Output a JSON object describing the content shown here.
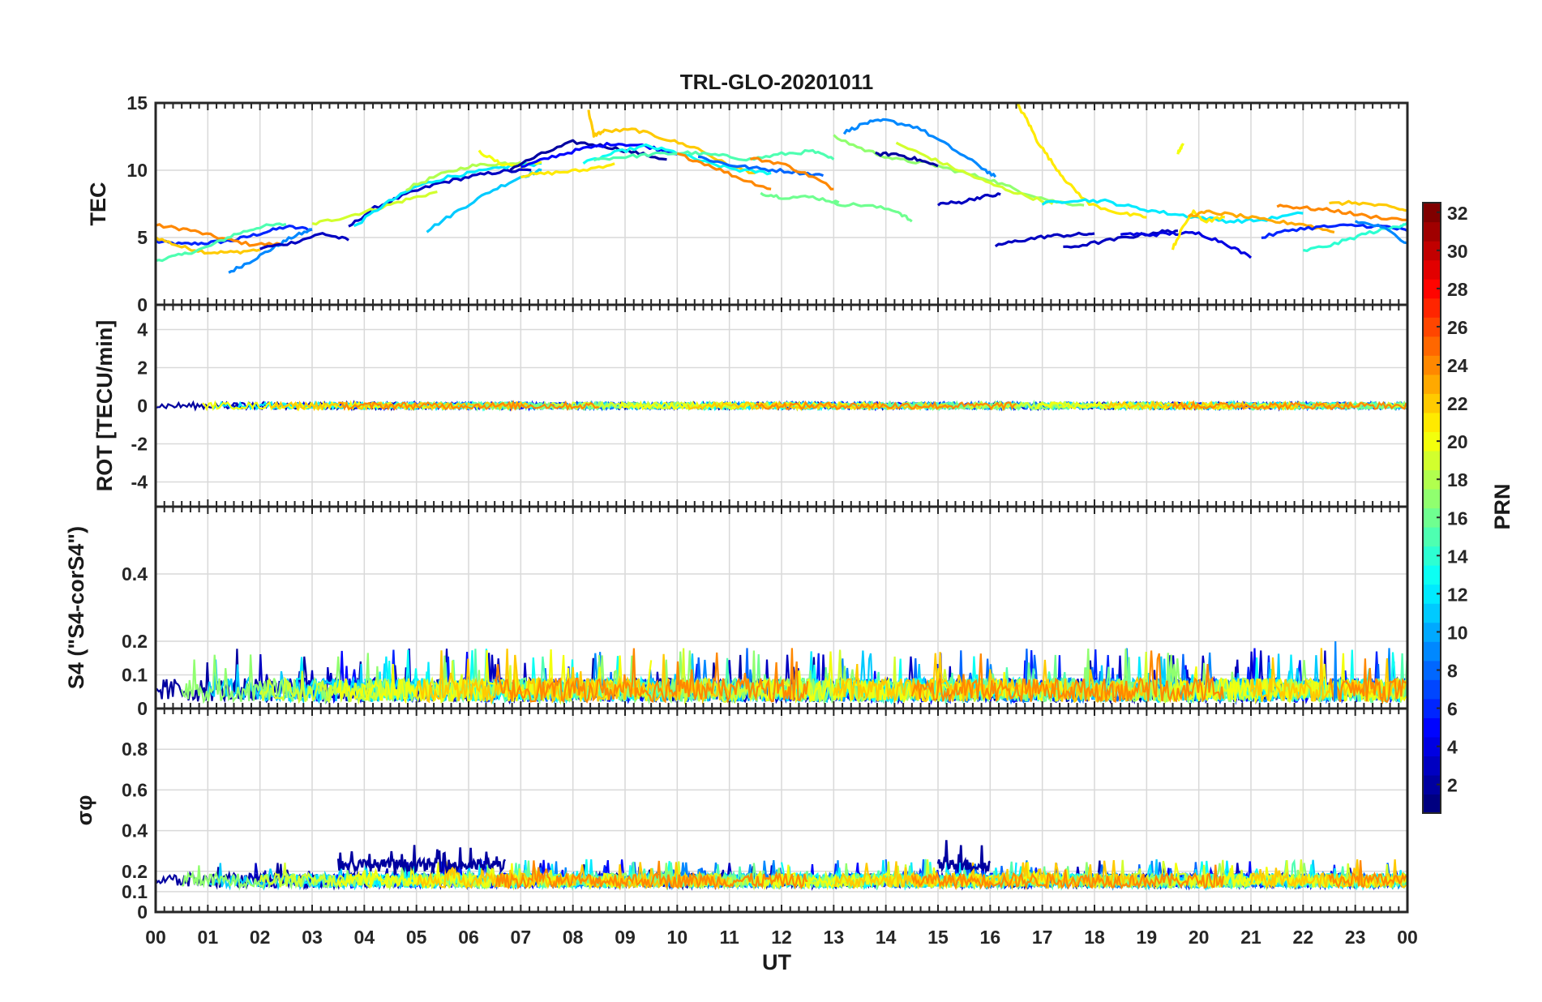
{
  "chart_data": {
    "type": "line",
    "title": "TRL-GLO-20201011",
    "xlabel": "UT",
    "x_tick_labels": [
      "00",
      "01",
      "02",
      "03",
      "04",
      "05",
      "06",
      "07",
      "08",
      "09",
      "10",
      "11",
      "12",
      "13",
      "14",
      "15",
      "16",
      "17",
      "18",
      "19",
      "20",
      "21",
      "22",
      "23",
      "00"
    ],
    "xlim_hours": [
      0,
      24
    ],
    "grid": true,
    "panels": [
      {
        "id": "tec",
        "ylabel": "TEC",
        "ylim": [
          0,
          15
        ],
        "yticks": [
          0,
          5,
          10,
          15
        ],
        "ytick_labels": [
          "0",
          "5",
          "10",
          "15"
        ],
        "series": [
          {
            "prn": 6,
            "x": [
              0.0,
              0.5,
              1.0,
              1.5,
              2.0,
              2.5,
              3.0
            ],
            "y": [
              4.7,
              4.5,
              4.6,
              4.8,
              5.3,
              5.8,
              5.6
            ]
          },
          {
            "prn": 22,
            "x": [
              0.0,
              0.5,
              1.0,
              1.5,
              2.0
            ],
            "y": [
              5.0,
              4.3,
              3.9,
              3.9,
              4.1
            ]
          },
          {
            "prn": 24,
            "x": [
              0.0,
              0.6,
              1.2,
              1.8,
              2.4
            ],
            "y": [
              5.9,
              5.6,
              5.0,
              4.5,
              4.5
            ]
          },
          {
            "prn": 15,
            "x": [
              0.0,
              0.5,
              1.0,
              1.5,
              2.0,
              2.5
            ],
            "y": [
              3.3,
              3.7,
              4.3,
              5.2,
              5.8,
              6.0
            ]
          },
          {
            "prn": 9,
            "x": [
              1.4,
              1.8,
              2.2,
              2.6,
              3.0
            ],
            "y": [
              2.4,
              3.2,
              4.1,
              5.0,
              5.6
            ]
          },
          {
            "prn": 3,
            "x": [
              2.0,
              2.6,
              3.2,
              3.7
            ],
            "y": [
              4.2,
              4.6,
              5.3,
              4.8
            ]
          },
          {
            "prn": 3,
            "x": [
              3.7,
              4.2,
              4.8,
              5.4,
              6.0,
              6.6,
              7.2
            ],
            "y": [
              5.8,
              7.2,
              8.2,
              9.0,
              9.5,
              9.9,
              10.0
            ]
          },
          {
            "prn": 19,
            "x": [
              3.0,
              3.6,
              4.2,
              4.8,
              5.4
            ],
            "y": [
              6.0,
              6.5,
              7.1,
              7.8,
              8.4
            ]
          },
          {
            "prn": 12,
            "x": [
              3.8,
              4.4,
              5.0,
              5.6,
              6.2,
              6.8,
              7.4
            ],
            "y": [
              5.8,
              7.5,
              8.8,
              9.5,
              9.9,
              10.3,
              10.5
            ]
          },
          {
            "prn": 18,
            "x": [
              4.8,
              5.4,
              6.0,
              6.6,
              7.0
            ],
            "y": [
              8.6,
              9.6,
              10.3,
              10.5,
              10.6
            ]
          },
          {
            "prn": 11,
            "x": [
              5.2,
              5.8,
              6.4,
              7.0,
              7.4
            ],
            "y": [
              5.5,
              7.0,
              8.4,
              9.5,
              10.0
            ]
          },
          {
            "prn": 20,
            "x": [
              6.2,
              6.6,
              7.0,
              7.4
            ],
            "y": [
              11.4,
              10.5,
              10.3,
              10.6
            ]
          },
          {
            "prn": 2,
            "x": [
              6.8,
              7.4,
              8.0,
              8.6,
              9.2,
              9.8
            ],
            "y": [
              10.1,
              11.2,
              12.1,
              11.8,
              11.3,
              10.8
            ]
          },
          {
            "prn": 5,
            "x": [
              7.0,
              7.6,
              8.2,
              8.8,
              9.4,
              10.0
            ],
            "y": [
              10.2,
              11.0,
              11.6,
              12.0,
              11.8,
              11.2
            ]
          },
          {
            "prn": 21,
            "x": [
              7.0,
              7.6,
              8.2,
              8.8
            ],
            "y": [
              9.6,
              9.8,
              10.0,
              10.5
            ]
          },
          {
            "prn": 22,
            "x": [
              8.3,
              8.4,
              8.6,
              9.2,
              9.8,
              10.4,
              11.0,
              11.5
            ],
            "y": [
              14.4,
              12.6,
              12.9,
              13.0,
              12.3,
              11.6,
              10.3,
              9.8
            ]
          },
          {
            "prn": 13,
            "x": [
              8.2,
              8.8,
              9.4,
              10.0,
              10.6,
              11.2,
              11.8
            ],
            "y": [
              10.5,
              11.3,
              11.8,
              11.3,
              10.5,
              10.0,
              9.8
            ]
          },
          {
            "prn": 15,
            "x": [
              8.4,
              9.0,
              9.6,
              10.2,
              10.8,
              11.4,
              12.0,
              12.6,
              13.0
            ],
            "y": [
              10.8,
              11.0,
              11.2,
              11.3,
              11.1,
              10.8,
              11.2,
              11.4,
              10.8
            ]
          },
          {
            "prn": 24,
            "x": [
              10.0,
              10.6,
              11.2,
              11.8
            ],
            "y": [
              11.2,
              10.4,
              9.4,
              8.6
            ]
          },
          {
            "prn": 8,
            "x": [
              10.4,
              11.0,
              11.6,
              12.2,
              12.8
            ],
            "y": [
              11.0,
              10.4,
              10.1,
              9.9,
              9.6
            ]
          },
          {
            "prn": 24,
            "x": [
              11.4,
              12.0,
              12.6,
              13.0
            ],
            "y": [
              10.9,
              10.5,
              9.5,
              8.6
            ]
          },
          {
            "prn": 16,
            "x": [
              11.6,
              12.0,
              12.6,
              13.1
            ],
            "y": [
              8.3,
              8.0,
              8.0,
              7.6
            ]
          },
          {
            "prn": 16,
            "x": [
              13.0,
              13.6,
              14.2,
              14.5
            ],
            "y": [
              7.5,
              7.4,
              7.0,
              6.2
            ]
          },
          {
            "prn": 17,
            "x": [
              13.0,
              13.6,
              14.2,
              14.8,
              15.4,
              16.0,
              16.6,
              17.2,
              17.8
            ],
            "y": [
              12.5,
              11.5,
              10.8,
              10.5,
              9.9,
              9.3,
              8.4,
              7.7,
              7.4
            ]
          },
          {
            "prn": 9,
            "x": [
              13.2,
              13.6,
              14.0,
              14.6,
              15.2,
              15.8,
              16.1
            ],
            "y": [
              12.8,
              13.5,
              13.7,
              13.2,
              11.8,
              10.3,
              9.5
            ]
          },
          {
            "prn": 2,
            "x": [
              13.8,
              14.2,
              14.6,
              15.0
            ],
            "y": [
              11.2,
              11.2,
              10.8,
              10.3
            ]
          },
          {
            "prn": 3,
            "x": [
              15.0,
              15.4,
              15.8,
              16.2
            ],
            "y": [
              7.5,
              7.6,
              8.0,
              8.2
            ]
          },
          {
            "prn": 19,
            "x": [
              14.2,
              14.8,
              15.4,
              16.0,
              16.6,
              17.2
            ],
            "y": [
              12.0,
              11.0,
              10.0,
              9.0,
              8.2,
              7.5
            ]
          },
          {
            "prn": 21,
            "x": [
              16.5,
              16.7,
              16.9,
              17.2,
              17.5,
              17.9,
              18.5,
              19.0
            ],
            "y": [
              15.0,
              13.8,
              12.2,
              10.5,
              9.0,
              7.5,
              6.8,
              6.5
            ]
          },
          {
            "prn": 3,
            "x": [
              16.1,
              16.6,
              17.1,
              17.6,
              18.0
            ],
            "y": [
              4.4,
              4.8,
              5.1,
              5.2,
              5.3
            ]
          },
          {
            "prn": 3,
            "x": [
              17.4,
              18.0,
              18.6,
              19.2,
              19.6
            ],
            "y": [
              4.2,
              4.6,
              5.0,
              5.4,
              5.5
            ]
          },
          {
            "prn": 12,
            "x": [
              17.0,
              17.6,
              18.2,
              18.8,
              19.4,
              20.0,
              20.6,
              21.2,
              22.0
            ],
            "y": [
              7.5,
              7.8,
              7.7,
              7.2,
              6.8,
              6.5,
              6.2,
              6.3,
              6.8
            ]
          },
          {
            "prn": 4,
            "x": [
              18.5,
              19.0,
              19.5,
              20.0,
              20.5,
              21.0
            ],
            "y": [
              5.3,
              5.2,
              5.3,
              5.3,
              4.6,
              3.5
            ]
          },
          {
            "prn": 20,
            "x": [
              19.6,
              19.7
            ],
            "y": [
              11.3,
              12.0
            ]
          },
          {
            "prn": 21,
            "x": [
              19.5,
              19.7,
              19.9,
              20.1,
              20.5
            ],
            "y": [
              4.2,
              5.8,
              7.0,
              6.2,
              6.5
            ]
          },
          {
            "prn": 23,
            "x": [
              19.8,
              20.2,
              20.8,
              21.4,
              22.0,
              22.6
            ],
            "y": [
              6.6,
              6.9,
              6.6,
              6.2,
              6.0,
              5.4
            ]
          },
          {
            "prn": 24,
            "x": [
              21.5,
              22.0,
              22.6,
              23.2,
              24.0
            ],
            "y": [
              7.4,
              7.2,
              7.0,
              6.6,
              6.3
            ]
          },
          {
            "prn": 6,
            "x": [
              21.2,
              21.8,
              22.4,
              23.0,
              23.6,
              24.0
            ],
            "y": [
              5.0,
              5.6,
              5.8,
              5.9,
              5.8,
              5.5
            ]
          },
          {
            "prn": 14,
            "x": [
              22.0,
              22.6,
              23.2,
              23.8,
              24.0
            ],
            "y": [
              4.0,
              4.5,
              5.3,
              5.8,
              6.1
            ]
          },
          {
            "prn": 22,
            "x": [
              22.5,
              23.0,
              23.6,
              24.0
            ],
            "y": [
              7.5,
              7.6,
              7.3,
              7.0
            ]
          },
          {
            "prn": 9,
            "x": [
              23.0,
              23.5,
              24.0
            ],
            "y": [
              6.2,
              5.8,
              4.6
            ]
          }
        ]
      },
      {
        "id": "rot",
        "ylabel": "ROT [TECU/min]",
        "ylim": [
          -5.3,
          5.3
        ],
        "yticks": [
          -4,
          -2,
          0,
          2,
          4
        ],
        "ytick_labels": [
          "-4",
          "-2",
          "0",
          "2",
          "4"
        ],
        "description": "Rate of TEC fluctuates within about ±0.3 TECU/min around 0 for all PRNs"
      },
      {
        "id": "s4",
        "ylabel": "S4 (\"S4-corS4\")",
        "ylim": [
          0,
          0.6
        ],
        "yticks": [
          0,
          0.1,
          0.2,
          0.4
        ],
        "ytick_labels": [
          "0",
          "0.1",
          "0.2",
          "0.4"
        ],
        "description": "Noise floor ~0.02-0.1 with spikes up to ~0.2 (around 22.6 UT)"
      },
      {
        "id": "sigma",
        "ylabel": "σφ",
        "ylim": [
          0,
          1.0
        ],
        "yticks": [
          0,
          0.1,
          0.2,
          0.4,
          0.6,
          0.8
        ],
        "ytick_labels": [
          "0",
          "0.1",
          "0.2",
          "0.4",
          "0.6",
          "0.8"
        ],
        "description": "Baseline ~0.12-0.2; PRN 2 elevated ~0.2-0.3 during 03.5-06.7 UT and 15.0-16.0 UT (peak ~0.36)"
      }
    ],
    "colorbar": {
      "label": "PRN",
      "range": [
        1,
        32
      ],
      "ticks": [
        2,
        4,
        6,
        8,
        10,
        12,
        14,
        16,
        18,
        20,
        22,
        24,
        26,
        28,
        30,
        32
      ],
      "colormap": "jet"
    }
  }
}
